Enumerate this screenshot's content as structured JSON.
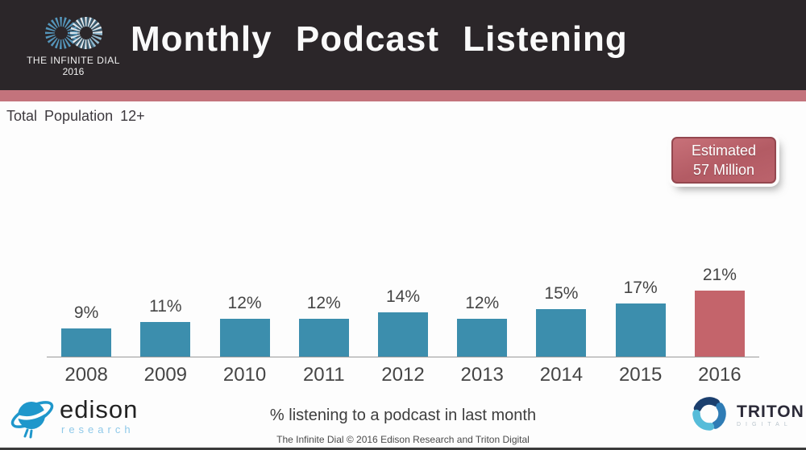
{
  "header": {
    "title": "Monthly Podcast Listening",
    "logo": {
      "line1": "THE INFINITE DIAL",
      "line2": "2016"
    }
  },
  "subtitle": "Total Population 12+",
  "estimate": {
    "line1": "Estimated",
    "line2": "57 Million"
  },
  "chart_data": {
    "type": "bar",
    "title": "Monthly Podcast Listening",
    "categories": [
      "2008",
      "2009",
      "2010",
      "2011",
      "2012",
      "2013",
      "2014",
      "2015",
      "2016"
    ],
    "values": [
      9,
      11,
      12,
      12,
      14,
      12,
      15,
      17,
      21
    ],
    "unit": "%",
    "xlabel": "",
    "ylabel": "% listening to a podcast in last month",
    "ylim": [
      0,
      25
    ],
    "grid": false,
    "legend": "none",
    "bar_color": "#3c8ead",
    "highlight_color": "#c4646b",
    "highlight_index": 8,
    "annotation": "Estimated 57 Million"
  },
  "footer": {
    "caption": "% listening to a podcast in last month",
    "credit": "The Infinite Dial  © 2016 Edison Research and Triton Digital",
    "edison": {
      "name": "edison",
      "sub": "research"
    },
    "triton": {
      "name": "TRITON",
      "sub": "DIGITAL"
    }
  },
  "colors": {
    "header_bg": "#2b2629",
    "accent_stripe": "#c3737c",
    "estimate_bg": "#b85f68",
    "teal_bar": "#3c8ead",
    "red_bar": "#c4646b",
    "edison_blue": "#1f97cb",
    "triton_navy": "#1b3f6e",
    "triton_blue": "#2f7cb5",
    "triton_light": "#56bcd9"
  }
}
